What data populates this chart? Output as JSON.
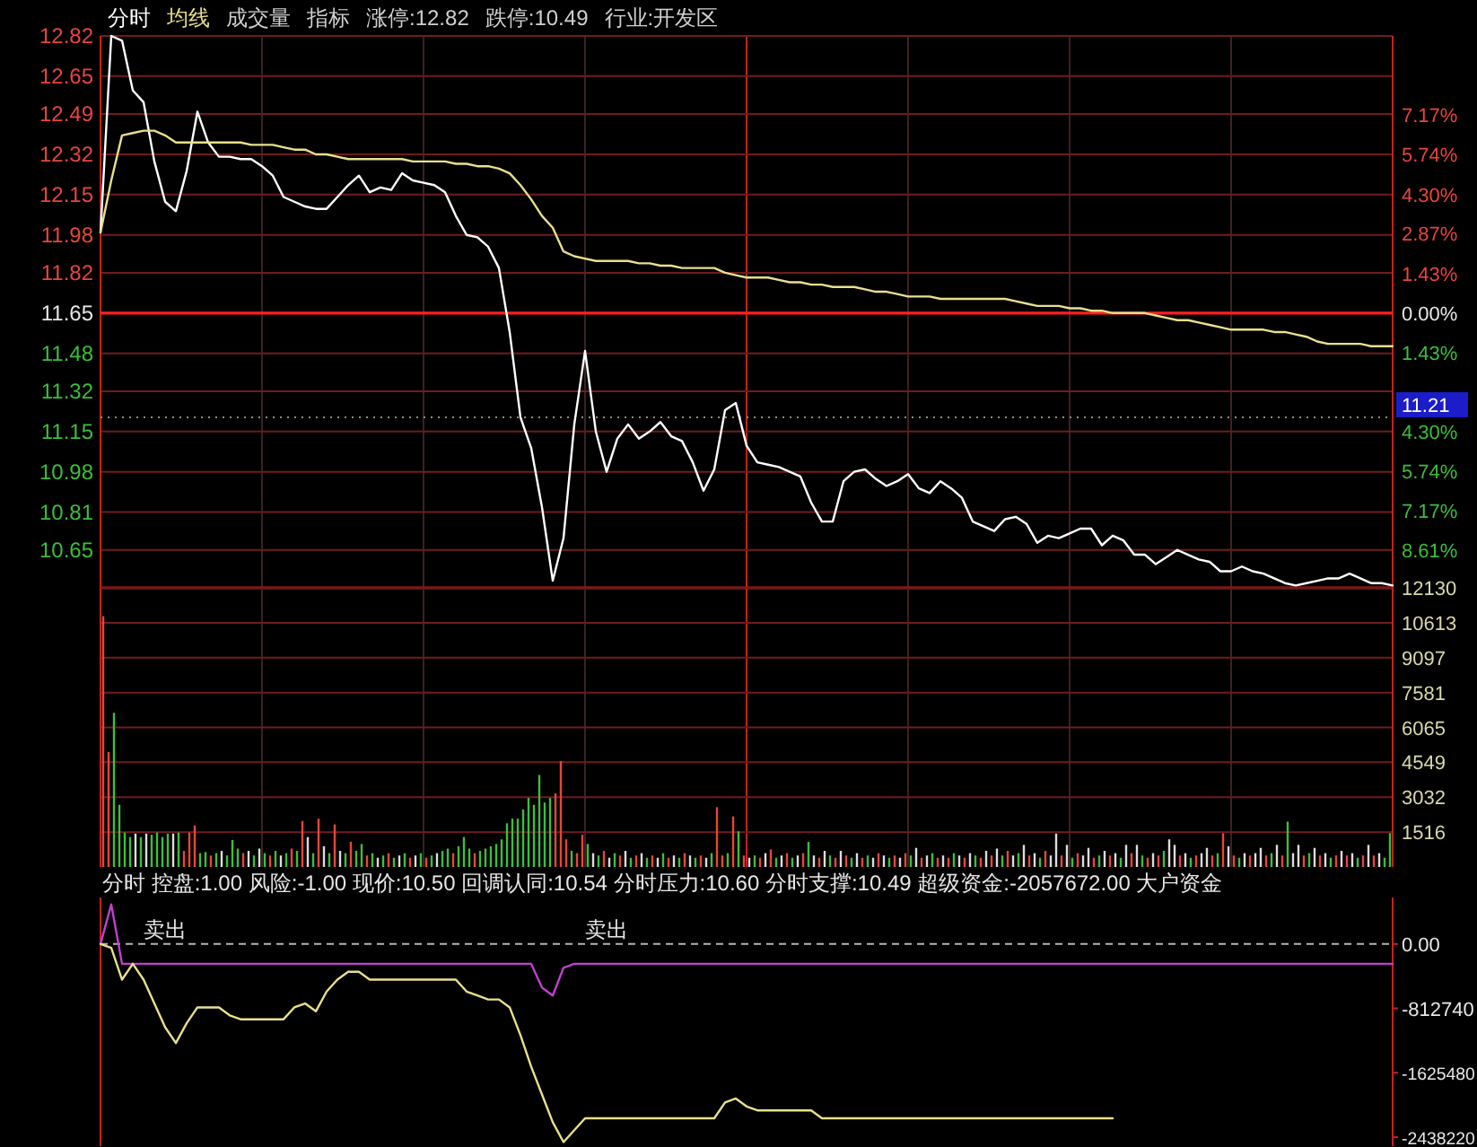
{
  "chart_data": [
    {
      "type": "line",
      "legend": "top left",
      "grid": true,
      "categories": [
        null,
        null,
        null,
        null,
        null,
        null,
        null,
        null,
        null,
        null,
        null,
        null,
        null,
        null,
        null,
        null,
        null,
        null,
        null,
        null,
        null,
        null,
        null,
        null,
        null,
        null,
        null,
        null,
        null,
        null,
        null,
        null,
        null,
        null,
        null,
        null,
        null,
        null,
        null,
        null,
        null,
        null,
        null,
        null,
        null,
        null,
        null,
        null,
        null,
        null,
        null,
        null,
        null,
        null,
        null,
        null,
        null,
        null,
        null,
        null,
        null,
        null,
        null,
        null,
        null,
        null,
        null,
        null,
        null,
        null,
        null,
        null,
        null,
        null,
        null,
        null,
        null,
        null,
        null,
        null,
        null,
        null,
        null,
        null,
        null,
        null,
        null,
        null,
        null,
        null,
        null,
        null,
        null,
        null,
        null,
        null,
        null,
        null,
        null,
        null,
        null,
        null,
        null,
        null,
        null,
        null,
        null,
        null,
        null,
        null,
        null,
        null,
        null,
        null,
        null,
        null,
        null,
        null,
        null,
        null,
        null
      ],
      "series": [
        {
          "name": "分时",
          "color": "#ffffff",
          "values": [
            11.99,
            12.82,
            12.8,
            12.59,
            12.54,
            12.29,
            12.12,
            12.08,
            12.25,
            12.5,
            12.37,
            12.31,
            12.31,
            12.3,
            12.3,
            12.27,
            12.23,
            12.14,
            12.12,
            12.1,
            12.09,
            12.09,
            12.14,
            12.19,
            12.23,
            12.16,
            12.18,
            12.17,
            12.24,
            12.21,
            12.2,
            12.19,
            12.16,
            12.06,
            11.98,
            11.97,
            11.93,
            11.84,
            11.57,
            11.21,
            11.08,
            10.83,
            10.52,
            10.7,
            11.18,
            11.49,
            11.15,
            10.98,
            11.12,
            11.18,
            11.12,
            11.15,
            11.19,
            11.13,
            11.11,
            11.02,
            10.9,
            10.99,
            11.24,
            11.27,
            11.09,
            11.02,
            11.01,
            11.0,
            10.98,
            10.96,
            10.85,
            10.77,
            10.77,
            10.94,
            10.98,
            10.99,
            10.95,
            10.92,
            10.94,
            10.97,
            10.91,
            10.89,
            10.94,
            10.91,
            10.87,
            10.77,
            10.75,
            10.73,
            10.78,
            10.79,
            10.76,
            10.68,
            10.71,
            10.7,
            10.72,
            10.74,
            10.74,
            10.67,
            10.71,
            10.69,
            10.63,
            10.63,
            10.59,
            10.62,
            10.65,
            10.63,
            10.61,
            10.6,
            10.56,
            10.56,
            10.58,
            10.56,
            10.55,
            10.53,
            10.51,
            10.5,
            10.51,
            10.52,
            10.53,
            10.53,
            10.55,
            10.53,
            10.51,
            10.51,
            10.5
          ]
        },
        {
          "name": "均线",
          "color": "#e8e08c",
          "values": [
            11.99,
            12.21,
            12.4,
            12.41,
            12.42,
            12.42,
            12.4,
            12.37,
            12.37,
            12.37,
            12.37,
            12.37,
            12.37,
            12.37,
            12.36,
            12.36,
            12.36,
            12.35,
            12.34,
            12.34,
            12.32,
            12.32,
            12.31,
            12.3,
            12.3,
            12.3,
            12.3,
            12.3,
            12.3,
            12.29,
            12.29,
            12.29,
            12.29,
            12.28,
            12.28,
            12.27,
            12.27,
            12.26,
            12.24,
            12.19,
            12.13,
            12.06,
            12.01,
            11.91,
            11.89,
            11.88,
            11.87,
            11.87,
            11.87,
            11.87,
            11.86,
            11.86,
            11.85,
            11.85,
            11.84,
            11.84,
            11.84,
            11.84,
            11.82,
            11.81,
            11.8,
            11.8,
            11.8,
            11.79,
            11.78,
            11.78,
            11.77,
            11.77,
            11.76,
            11.76,
            11.76,
            11.75,
            11.74,
            11.74,
            11.73,
            11.72,
            11.72,
            11.72,
            11.71,
            11.71,
            11.71,
            11.71,
            11.71,
            11.71,
            11.71,
            11.7,
            11.69,
            11.68,
            11.68,
            11.68,
            11.67,
            11.67,
            11.66,
            11.66,
            11.65,
            11.65,
            11.65,
            11.65,
            11.64,
            11.63,
            11.62,
            11.62,
            11.61,
            11.6,
            11.59,
            11.58,
            11.58,
            11.58,
            11.58,
            11.57,
            11.57,
            11.56,
            11.55,
            11.53,
            11.52,
            11.52,
            11.52,
            11.52,
            11.51,
            11.51,
            11.51
          ]
        }
      ],
      "ylim": [
        10.49,
        12.82
      ],
      "yticks": [
        12.82,
        12.65,
        12.49,
        12.32,
        12.15,
        11.98,
        11.82,
        11.65,
        11.48,
        11.32,
        11.15,
        10.98,
        10.81,
        10.65
      ],
      "y2lim": [
        -9.96,
        10.04
      ],
      "y2ticks": [
        {
          "value": 7.17,
          "label": "7.17%"
        },
        {
          "value": 5.74,
          "label": "5.74%"
        },
        {
          "value": 4.3,
          "label": "4.30%"
        },
        {
          "value": 2.87,
          "label": "2.87%"
        },
        {
          "value": 1.43,
          "label": "1.43%"
        },
        {
          "value": 0,
          "label": "0.00%"
        },
        {
          "value": -1.43,
          "label": "1.43%"
        },
        {
          "value": -2.87,
          "label": null
        },
        {
          "value": -4.3,
          "label": "4.30%"
        },
        {
          "value": -5.74,
          "label": "5.74%"
        },
        {
          "value": -7.17,
          "label": "7.17%"
        },
        {
          "value": -8.61,
          "label": "8.61%"
        }
      ],
      "ref_lines": [
        {
          "axis": "y",
          "value": 11.65,
          "color": "#ff2020"
        },
        {
          "axis": "y",
          "value": 11.21,
          "label": "11.21",
          "color": "#8c8c8c",
          "line_style": "dotted"
        }
      ],
      "annotations": [
        "成交量",
        "指标",
        "涨停:12.82",
        "跌停:10.49",
        "行业:开发区"
      ]
    },
    {
      "type": "bar",
      "grid": true,
      "categories": [
        null,
        null,
        null,
        null,
        null,
        null,
        null,
        null,
        null,
        null,
        null,
        null,
        null,
        null,
        null,
        null,
        null,
        null,
        null,
        null,
        null,
        null,
        null,
        null,
        null,
        null,
        null,
        null,
        null,
        null,
        null,
        null,
        null,
        null,
        null,
        null,
        null,
        null,
        null,
        null,
        null,
        null,
        null,
        null,
        null,
        null,
        null,
        null,
        null,
        null,
        null,
        null,
        null,
        null,
        null,
        null,
        null,
        null,
        null,
        null,
        null,
        null,
        null,
        null,
        null,
        null,
        null,
        null,
        null,
        null,
        null,
        null,
        null,
        null,
        null,
        null,
        null,
        null,
        null,
        null,
        null,
        null,
        null,
        null,
        null,
        null,
        null,
        null,
        null,
        null,
        null,
        null,
        null,
        null,
        null,
        null,
        null,
        null,
        null,
        null,
        null,
        null,
        null,
        null,
        null,
        null,
        null,
        null,
        null,
        null,
        null,
        null,
        null,
        null,
        null,
        null,
        null,
        null,
        null,
        null,
        null,
        null,
        null,
        null,
        null,
        null,
        null,
        null,
        null,
        null,
        null,
        null,
        null,
        null,
        null,
        null,
        null,
        null,
        null,
        null,
        null,
        null,
        null,
        null,
        null,
        null,
        null,
        null,
        null,
        null,
        null,
        null,
        null,
        null,
        null,
        null,
        null,
        null,
        null,
        null,
        null,
        null,
        null,
        null,
        null,
        null,
        null,
        null,
        null,
        null,
        null,
        null,
        null,
        null,
        null,
        null,
        null,
        null,
        null,
        null,
        null,
        null,
        null,
        null,
        null,
        null,
        null,
        null,
        null,
        null,
        null,
        null,
        null,
        null,
        null,
        null,
        null,
        null,
        null,
        null,
        null,
        null,
        null,
        null,
        null,
        null,
        null,
        null,
        null,
        null,
        null,
        null,
        null,
        null,
        null,
        null,
        null,
        null,
        null,
        null,
        null,
        null,
        null,
        null,
        null,
        null,
        null,
        null,
        null,
        null,
        null,
        null,
        null,
        null,
        null,
        null,
        null,
        null,
        null,
        null
      ],
      "series": [
        {
          "axis": "y2",
          "values": [
            10900,
            5000,
            6700,
            2700,
            1500,
            1300,
            1450,
            1300,
            1450,
            1400,
            1500,
            1300,
            1450,
            1450,
            1500,
            700,
            1500,
            1800,
            600,
            650,
            500,
            600,
            700,
            500,
            1170,
            800,
            600,
            700,
            500,
            800,
            600,
            500,
            700,
            500,
            600,
            800,
            700,
            2000,
            1300,
            600,
            2100,
            900,
            600,
            1850,
            700,
            600,
            1100,
            700,
            1000,
            500,
            600,
            400,
            500,
            600,
            400,
            500,
            600,
            400,
            500,
            600,
            400,
            500,
            600,
            700,
            800,
            600,
            900,
            1300,
            800,
            600,
            700,
            800,
            900,
            1000,
            1200,
            1900,
            2100,
            2100,
            2500,
            3000,
            2700,
            4000,
            2800,
            3000,
            3200,
            4600,
            1200,
            700,
            600,
            1400,
            1000,
            600,
            500,
            700,
            400,
            600,
            500,
            700,
            400,
            500,
            600,
            400,
            500,
            400,
            600,
            400,
            500,
            400,
            600,
            500,
            400,
            500,
            400,
            600,
            2600,
            500,
            600,
            2200,
            1550,
            500,
            400,
            500,
            400,
            600,
            760,
            400,
            500,
            600,
            400,
            500,
            600,
            1090,
            500,
            400,
            700,
            500,
            400,
            700,
            500,
            400,
            600,
            400,
            500,
            400,
            600,
            500,
            400,
            500,
            400,
            600,
            500,
            830,
            400,
            500,
            600,
            400,
            500,
            400,
            600,
            500,
            400,
            600,
            500,
            400,
            700,
            500,
            800,
            500,
            700,
            500,
            600,
            960,
            500,
            600,
            400,
            700,
            500,
            1450,
            500,
            960,
            400,
            600,
            500,
            830,
            400,
            500,
            700,
            500,
            600,
            400,
            960,
            600,
            960,
            500,
            400,
            600,
            500,
            700,
            1200,
            960,
            500,
            600,
            400,
            500,
            600,
            830,
            500,
            600,
            1470,
            900,
            500,
            400,
            600,
            500,
            600,
            830,
            500,
            600,
            960,
            500,
            1970,
            600,
            960,
            500,
            600,
            830,
            500,
            600,
            400,
            500,
            700,
            500,
            600,
            400,
            500,
            960,
            500,
            600,
            400,
            1470
          ],
          "colors": [
            "#e8453c",
            "#e8453c",
            "#3cbe3c",
            "#3cbe3c",
            "#3cbe3c",
            "#3cbe3c",
            "#dcdcdc",
            "#3cbe3c",
            "#dcdcdc",
            "#3cbe3c",
            "#3cbe3c",
            "#3cbe3c",
            "#3cbe3c",
            "#dcdcdc",
            "#3cbe3c",
            "#e8453c",
            "#e8453c",
            "#e8453c",
            "#3cbe3c",
            "#3cbe3c",
            "#e8453c",
            "#3cbe3c",
            "#dcdcdc",
            "#3cbe3c",
            "#3cbe3c",
            "#3cbe3c",
            "#e8453c",
            "#dcdcdc",
            "#3cbe3c",
            "#dcdcdc",
            "#3cbe3c",
            "#e8453c",
            "#3cbe3c",
            "#dcdcdc",
            "#3cbe3c",
            "#e8453c",
            "#3cbe3c",
            "#e8453c",
            "#dcdcdc",
            "#3cbe3c",
            "#e8453c",
            "#dcdcdc",
            "#3cbe3c",
            "#e8453c",
            "#dcdcdc",
            "#3cbe3c",
            "#e8453c",
            "#3cbe3c",
            "#3cbe3c",
            "#e8453c",
            "#3cbe3c",
            "#dcdcdc",
            "#3cbe3c",
            "#e8453c",
            "#3cbe3c",
            "#dcdcdc",
            "#3cbe3c",
            "#e8453c",
            "#dcdcdc",
            "#3cbe3c",
            "#e8453c",
            "#3cbe3c",
            "#dcdcdc",
            "#3cbe3c",
            "#3cbe3c",
            "#e8453c",
            "#3cbe3c",
            "#3cbe3c",
            "#3cbe3c",
            "#e8453c",
            "#3cbe3c",
            "#3cbe3c",
            "#3cbe3c",
            "#3cbe3c",
            "#3cbe3c",
            "#3cbe3c",
            "#3cbe3c",
            "#3cbe3c",
            "#3cbe3c",
            "#3cbe3c",
            "#3cbe3c",
            "#3cbe3c",
            "#3cbe3c",
            "#3cbe3c",
            "#e8453c",
            "#e8453c",
            "#e8453c",
            "#3cbe3c",
            "#e8453c",
            "#e8453c",
            "#3cbe3c",
            "#dcdcdc",
            "#3cbe3c",
            "#e8453c",
            "#dcdcdc",
            "#3cbe3c",
            "#e8453c",
            "#dcdcdc",
            "#3cbe3c",
            "#e8453c",
            "#dcdcdc",
            "#3cbe3c",
            "#e8453c",
            "#dcdcdc",
            "#3cbe3c",
            "#e8453c",
            "#dcdcdc",
            "#3cbe3c",
            "#e8453c",
            "#dcdcdc",
            "#3cbe3c",
            "#e8453c",
            "#dcdcdc",
            "#3cbe3c",
            "#e8453c",
            "#e8453c",
            "#3cbe3c",
            "#e8453c",
            "#3cbe3c",
            "#e8453c",
            "#dcdcdc",
            "#3cbe3c",
            "#e8453c",
            "#dcdcdc",
            "#e8453c",
            "#3cbe3c",
            "#dcdcdc",
            "#e8453c",
            "#3cbe3c",
            "#dcdcdc",
            "#e8453c",
            "#3cbe3c",
            "#dcdcdc",
            "#e8453c",
            "#dcdcdc",
            "#3cbe3c",
            "#e8453c",
            "#dcdcdc",
            "#e8453c",
            "#3cbe3c",
            "#dcdcdc",
            "#e8453c",
            "#3cbe3c",
            "#dcdcdc",
            "#e8453c",
            "#dcdcdc",
            "#3cbe3c",
            "#e8453c",
            "#dcdcdc",
            "#e8453c",
            "#3cbe3c",
            "#dcdcdc",
            "#e8453c",
            "#dcdcdc",
            "#3cbe3c",
            "#e8453c",
            "#dcdcdc",
            "#e8453c",
            "#3cbe3c",
            "#dcdcdc",
            "#e8453c",
            "#dcdcdc",
            "#3cbe3c",
            "#e8453c",
            "#dcdcdc",
            "#e8453c",
            "#dcdcdc",
            "#3cbe3c",
            "#e8453c",
            "#dcdcdc",
            "#3cbe3c",
            "#dcdcdc",
            "#e8453c",
            "#dcdcdc",
            "#3cbe3c",
            "#e8453c",
            "#dcdcdc",
            "#dcdcdc",
            "#e8453c",
            "#dcdcdc",
            "#3cbe3c",
            "#e8453c",
            "#dcdcdc",
            "#dcdcdc",
            "#e8453c",
            "#3cbe3c",
            "#dcdcdc",
            "#e8453c",
            "#dcdcdc",
            "#3cbe3c",
            "#dcdcdc",
            "#e8453c",
            "#dcdcdc",
            "#3cbe3c",
            "#e8453c",
            "#dcdcdc",
            "#e8453c",
            "#3cbe3c",
            "#dcdcdc",
            "#dcdcdc",
            "#e8453c",
            "#dcdcdc",
            "#3cbe3c",
            "#e8453c",
            "#dcdcdc",
            "#dcdcdc",
            "#e8453c",
            "#3cbe3c",
            "#e8453c",
            "#dcdcdc",
            "#e8453c",
            "#3cbe3c",
            "#dcdcdc",
            "#e8453c",
            "#dcdcdc",
            "#dcdcdc",
            "#e8453c",
            "#3cbe3c",
            "#dcdcdc",
            "#e8453c",
            "#3cbe3c",
            "#dcdcdc",
            "#dcdcdc",
            "#e8453c",
            "#3cbe3c",
            "#dcdcdc",
            "#e8453c",
            "#dcdcdc",
            "#3cbe3c",
            "#e8453c",
            "#dcdcdc",
            "#e8453c",
            "#dcdcdc",
            "#3cbe3c",
            "#e8453c",
            "#dcdcdc",
            "#e8453c",
            "#dcdcdc",
            "#3cbe3c",
            "#3cbe3c"
          ]
        }
      ],
      "y2lim": [
        0,
        12130
      ],
      "y2ticks": [
        1516,
        3032,
        4549,
        6065,
        7581,
        9097,
        10613,
        12130
      ]
    },
    {
      "type": "line",
      "title": "分时  控盘:1.00  风险:-1.00  现价:10.50  回调认同:10.54  分时压力:10.60  分时支撑:10.49  超级资金:-2057672.00  大户资金",
      "categories": [
        null,
        null,
        null,
        null,
        null,
        null,
        null,
        null,
        null,
        null,
        null,
        null,
        null,
        null,
        null,
        null,
        null,
        null,
        null,
        null,
        null,
        null,
        null,
        null,
        null,
        null,
        null,
        null,
        null,
        null,
        null,
        null,
        null,
        null,
        null,
        null,
        null,
        null,
        null,
        null,
        null,
        null,
        null,
        null,
        null,
        null,
        null,
        null,
        null,
        null,
        null,
        null,
        null,
        null,
        null,
        null,
        null,
        null,
        null,
        null,
        null,
        null,
        null,
        null,
        null,
        null,
        null,
        null,
        null,
        null,
        null,
        null,
        null,
        null,
        null,
        null,
        null,
        null,
        null,
        null,
        null,
        null,
        null,
        null,
        null,
        null,
        null,
        null,
        null,
        null,
        null,
        null,
        null,
        null,
        null,
        null,
        null,
        null,
        null,
        null,
        null,
        null,
        null,
        null,
        null,
        null,
        null,
        null,
        null,
        null,
        null,
        null,
        null,
        null,
        null,
        null,
        null,
        null,
        null,
        null,
        null
      ],
      "series": [
        {
          "color": "#c040d0",
          "values": [
            0,
            500000,
            -250000,
            -250000,
            -250000,
            -250000,
            -250000,
            -250000,
            -250000,
            -250000,
            -250000,
            -250000,
            -250000,
            -250000,
            -250000,
            -250000,
            -250000,
            -250000,
            -250000,
            -250000,
            -250000,
            -250000,
            -250000,
            -250000,
            -250000,
            -250000,
            -250000,
            -250000,
            -250000,
            -250000,
            -250000,
            -250000,
            -250000,
            -250000,
            -250000,
            -250000,
            -250000,
            -250000,
            -250000,
            -250000,
            -250000,
            -550000,
            -650000,
            -300000,
            -250000,
            -250000,
            -250000,
            -250000,
            -250000,
            -250000,
            -250000,
            -250000,
            -250000,
            -250000,
            -250000,
            -250000,
            -250000,
            -250000,
            -250000,
            -250000,
            -250000,
            -250000,
            -250000,
            -250000,
            -250000,
            -250000,
            -250000,
            -250000,
            -250000,
            -250000,
            -250000,
            -250000,
            -250000,
            -250000,
            -250000,
            -250000,
            -250000,
            -250000,
            -250000,
            -250000,
            -250000,
            -250000,
            -250000,
            -250000,
            -250000,
            -250000,
            -250000,
            -250000,
            -250000,
            -250000,
            -250000,
            -250000,
            -250000,
            -250000,
            -250000,
            -250000,
            -250000,
            -250000,
            -250000,
            -250000,
            -250000,
            -250000,
            -250000,
            -250000,
            -250000,
            -250000,
            -250000,
            -250000,
            -250000,
            -250000,
            -250000,
            -250000,
            -250000,
            -250000,
            -250000,
            -250000,
            -250000,
            -250000,
            -250000,
            -250000,
            -250000
          ],
          "value_labels": [
            null,
            null,
            null,
            null,
            "卖出",
            null,
            null,
            null,
            null,
            null,
            null,
            null,
            null,
            null,
            null,
            null,
            null,
            null,
            null,
            null,
            null,
            null,
            null,
            null,
            null,
            null,
            null,
            null,
            null,
            null,
            null,
            null,
            null,
            null,
            null,
            null,
            null,
            null,
            null,
            null,
            null,
            null,
            null,
            null,
            null,
            "卖出",
            null,
            null,
            null,
            null,
            null,
            null,
            null,
            null,
            null,
            null,
            null,
            null,
            null,
            null,
            null,
            null,
            null,
            null,
            null,
            null,
            null,
            null,
            null,
            null,
            null,
            null,
            null,
            null,
            null,
            null,
            null,
            null,
            null,
            null,
            null,
            null,
            null,
            null,
            null,
            null,
            null,
            null,
            null,
            null,
            null,
            null,
            null,
            null,
            null,
            null,
            null,
            null,
            null,
            null,
            null,
            null,
            null,
            null,
            null,
            null,
            null,
            null,
            null,
            null,
            null,
            null,
            null,
            null,
            null,
            null,
            null,
            null,
            null,
            null,
            null
          ]
        },
        {
          "color": "#e8e08c",
          "values": [
            0,
            -50000,
            -450000,
            -250000,
            -450000,
            -750000,
            -1050000,
            -1250000,
            -1000000,
            -800000,
            -800000,
            -800000,
            -900000,
            -950000,
            -950000,
            -950000,
            -950000,
            -950000,
            -800000,
            -750000,
            -850000,
            -600000,
            -450000,
            -350000,
            -350000,
            -450000,
            -450000,
            -450000,
            -450000,
            -450000,
            -450000,
            -450000,
            -450000,
            -450000,
            -600000,
            -650000,
            -700000,
            -700000,
            -800000,
            -1150000,
            -1550000,
            -1900000,
            -2250000,
            -2500000,
            -2350000,
            -2200000,
            -2200000,
            -2200000,
            -2200000,
            -2200000,
            -2200000,
            -2200000,
            -2200000,
            -2200000,
            -2200000,
            -2200000,
            -2200000,
            -2200000,
            -2000000,
            -1950000,
            -2050000,
            -2100000,
            -2100000,
            -2100000,
            -2100000,
            -2100000,
            -2100000,
            -2200000,
            -2200000,
            -2200000,
            -2200000,
            -2200000,
            -2200000,
            -2200000,
            -2200000,
            -2200000,
            -2200000,
            -2200000,
            -2200000,
            -2200000,
            -2200000,
            -2200000,
            -2200000,
            -2200000,
            -2200000,
            -2200000,
            -2200000,
            -2200000,
            -2200000,
            -2200000,
            -2200000,
            -2200000,
            -2200000,
            -2200000,
            -2200000,
            null,
            null,
            null,
            null,
            null,
            null,
            null,
            null,
            null,
            null,
            null,
            null,
            null,
            null,
            null,
            null,
            null,
            null,
            null,
            null,
            null,
            null,
            null,
            null,
            null,
            null
          ]
        }
      ],
      "ylim": [
        -2551000,
        587000
      ],
      "yticks": [
        {
          "value": 0,
          "label": "0.00"
        },
        {
          "value": -812740,
          "label": "-812740"
        },
        {
          "value": -1625480,
          "label": "-1625480"
        },
        {
          "value": -2438220,
          "label": "-2438220"
        }
      ],
      "ref_lines": [
        {
          "axis": "y",
          "value": 0,
          "color": "#b4b4b4",
          "line_style": "dashed"
        }
      ]
    }
  ]
}
